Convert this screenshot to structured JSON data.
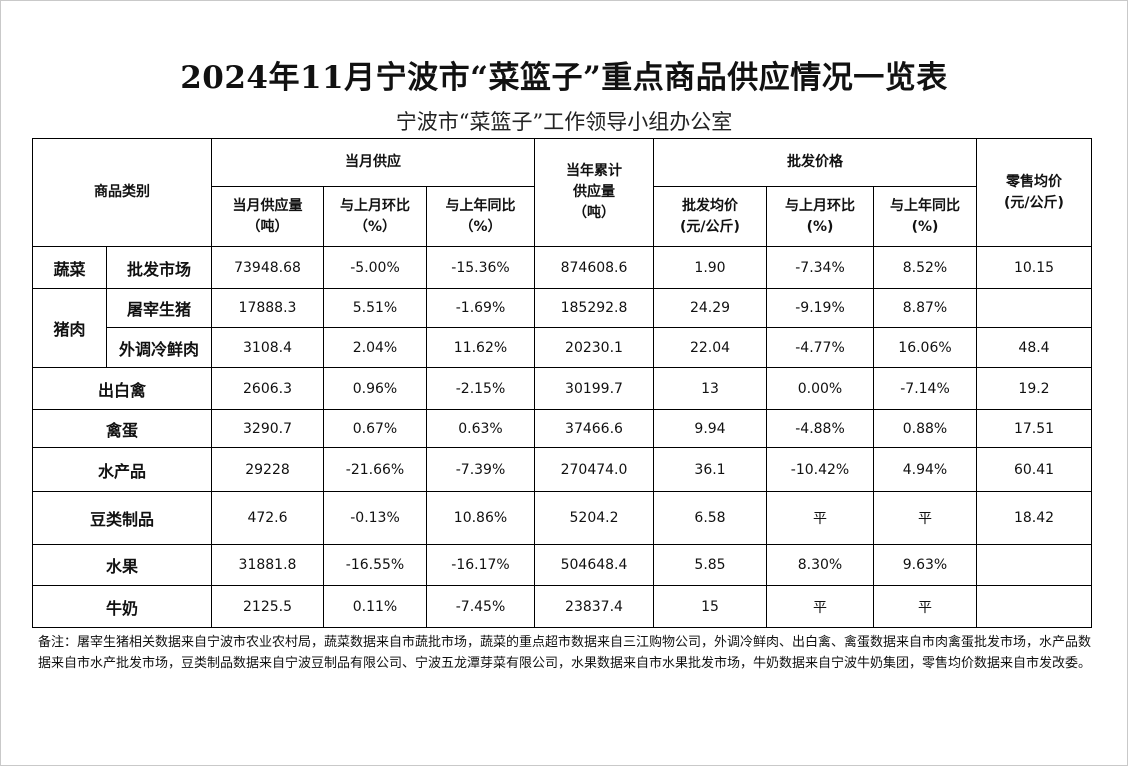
{
  "title": "2024年11月宁波市“菜篮子”重点商品供应情况一览表",
  "subtitle": "宁波市“菜篮子”工作领导小组办公室",
  "header": {
    "category": "商品类别",
    "monthly_supply": "当月供应",
    "supply_qty_1": "当月供应量",
    "supply_qty_2": "（吨）",
    "mom_1": "与上月环比",
    "mom_2": "（%）",
    "yoy_1": "与上年同比",
    "yoy_2": "（%）",
    "cumulative_1": "当年累计",
    "cumulative_2": "供应量",
    "cumulative_3": "（吨）",
    "wholesale_price": "批发价格",
    "avg_price_1": "批发均价",
    "avg_price_2": "(元/公斤)",
    "price_mom_1": "与上月环比",
    "price_mom_2": "(%)",
    "price_yoy_1": "与上年同比",
    "price_yoy_2": "(%)",
    "retail_1": "零售均价",
    "retail_2": "(元/公斤)"
  },
  "groups": {
    "vegetables": "蔬菜",
    "pork": "猪肉"
  },
  "rows": [
    {
      "name": "批发市场",
      "supply": "73948.68",
      "mom": "-5.00%",
      "yoy": "-15.36%",
      "cumulative": "874608.6",
      "price": "1.90",
      "price_mom": "-7.34%",
      "price_yoy": "8.52%",
      "retail": "10.15"
    },
    {
      "name": "屠宰生猪",
      "supply": "17888.3",
      "mom": "5.51%",
      "yoy": "-1.69%",
      "cumulative": "185292.8",
      "price": "24.29",
      "price_mom": "-9.19%",
      "price_yoy": "8.87%",
      "retail": ""
    },
    {
      "name": "外调冷鲜肉",
      "supply": "3108.4",
      "mom": "2.04%",
      "yoy": "11.62%",
      "cumulative": "20230.1",
      "price": "22.04",
      "price_mom": "-4.77%",
      "price_yoy": "16.06%",
      "retail": "48.4"
    },
    {
      "name": "出白禽",
      "supply": "2606.3",
      "mom": "0.96%",
      "yoy": "-2.15%",
      "cumulative": "30199.7",
      "price": "13",
      "price_mom": "0.00%",
      "price_yoy": "-7.14%",
      "retail": "19.2"
    },
    {
      "name": "禽蛋",
      "supply": "3290.7",
      "mom": "0.67%",
      "yoy": "0.63%",
      "cumulative": "37466.6",
      "price": "9.94",
      "price_mom": "-4.88%",
      "price_yoy": "0.88%",
      "retail": "17.51"
    },
    {
      "name": "水产品",
      "supply": "29228",
      "mom": "-21.66%",
      "yoy": "-7.39%",
      "cumulative": "270474.0",
      "price": "36.1",
      "price_mom": "-10.42%",
      "price_yoy": "4.94%",
      "retail": "60.41"
    },
    {
      "name": "豆类制品",
      "supply": "472.6",
      "mom": "-0.13%",
      "yoy": "10.86%",
      "cumulative": "5204.2",
      "price": "6.58",
      "price_mom": "平",
      "price_yoy": "平",
      "retail": "18.42"
    },
    {
      "name": "水果",
      "supply": "31881.8",
      "mom": "-16.55%",
      "yoy": "-16.17%",
      "cumulative": "504648.4",
      "price": "5.85",
      "price_mom": "8.30%",
      "price_yoy": "9.63%",
      "retail": ""
    },
    {
      "name": "牛奶",
      "supply": "2125.5",
      "mom": "0.11%",
      "yoy": "-7.45%",
      "cumulative": "23837.4",
      "price": "15",
      "price_mom": "平",
      "price_yoy": "平",
      "retail": ""
    }
  ],
  "note": "备注：屠宰生猪相关数据来自宁波市农业农村局，蔬菜数据来自市蔬批市场，蔬菜的重点超市数据来自三江购物公司，外调冷鲜肉、出白禽、禽蛋数据来自市肉禽蛋批发市场，水产品数据来自市水产批发市场，豆类制品数据来自宁波豆制品有限公司、宁波五龙潭芽菜有限公司，水果数据来自市水果批发市场，牛奶数据来自宁波牛奶集团，零售均价数据来自市发改委。"
}
